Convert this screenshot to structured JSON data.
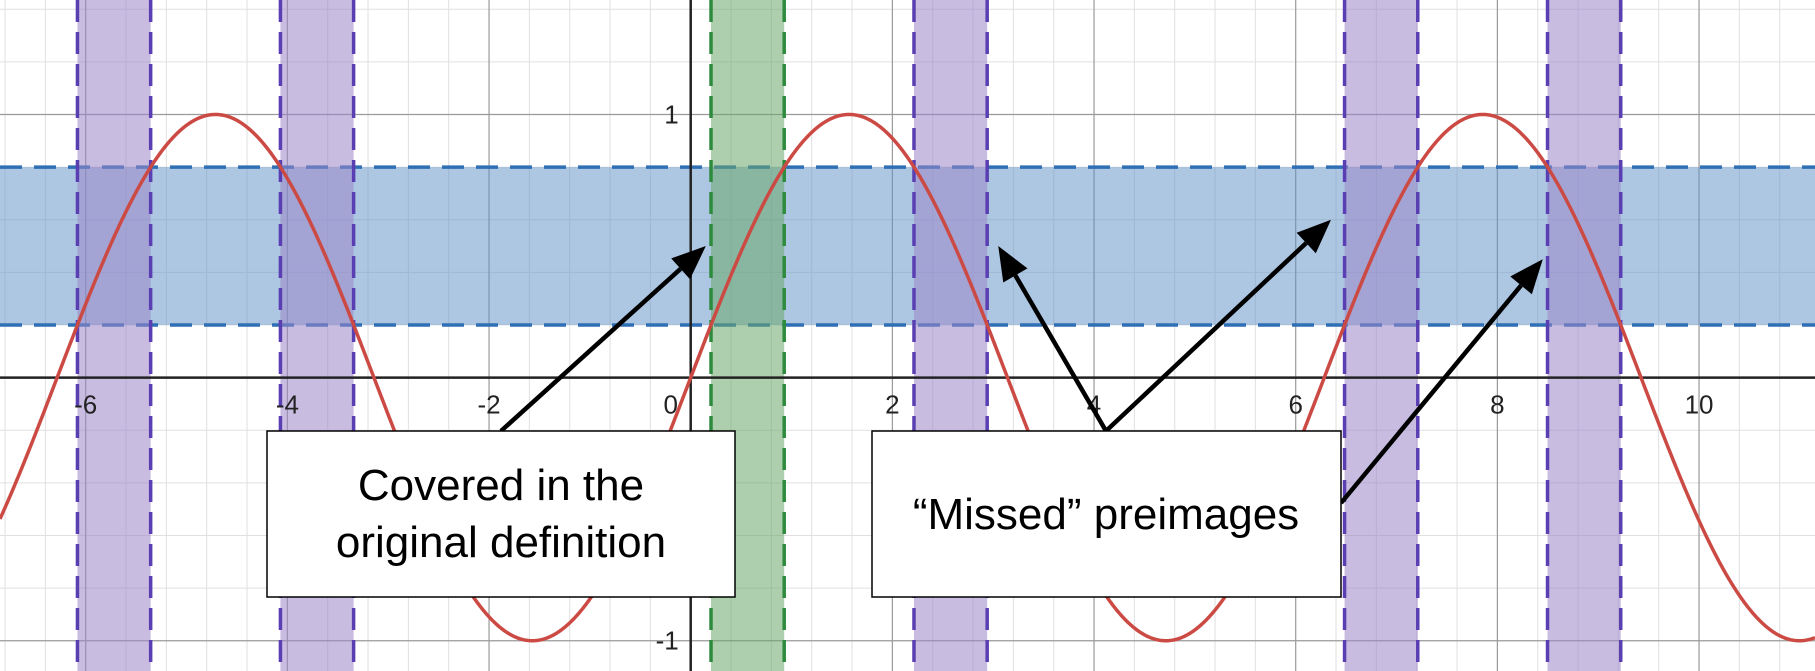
{
  "chart_data": {
    "type": "line",
    "function": "sin(x)",
    "xlim": [
      -6.85,
      11.15
    ],
    "ylim": [
      -1.115,
      1.435
    ],
    "grid": true,
    "x_ticks": [
      {
        "value": -6,
        "label": "-6"
      },
      {
        "value": -4,
        "label": "-4"
      },
      {
        "value": -2,
        "label": "-2"
      },
      {
        "value": 0,
        "label": "0"
      },
      {
        "value": 2,
        "label": "2"
      },
      {
        "value": 4,
        "label": "4"
      },
      {
        "value": 6,
        "label": "6"
      },
      {
        "value": 8,
        "label": "8"
      },
      {
        "value": 10,
        "label": "10"
      }
    ],
    "y_ticks": [
      {
        "value": 1,
        "label": "1"
      },
      {
        "value": -1,
        "label": "-1"
      }
    ],
    "horizontal_band": {
      "y_min": 0.2,
      "y_max": 0.8,
      "color": "#5b8fc7"
    },
    "green_band": {
      "x_min": 0.2014,
      "x_max": 0.9273,
      "color": "#6aa86a"
    },
    "purple_bands": [
      {
        "x_min": -6.0818,
        "x_max": -5.3559
      },
      {
        "x_min": -4.0689,
        "x_max": -3.343
      },
      {
        "x_min": 2.2143,
        "x_max": 2.9402
      },
      {
        "x_min": 6.4845,
        "x_max": 7.2105
      },
      {
        "x_min": 8.4975,
        "x_max": 9.2234
      }
    ],
    "colors": {
      "curve": "#cc4a44",
      "band_edge": "#2f6fb5",
      "green_edge": "#2e8b3e",
      "purple_fill": "#9b85c9",
      "purple_edge": "#5a3fb3",
      "arrow": "#000000"
    },
    "annotations": [
      {
        "lines": [
          "Covered in the",
          "original definition"
        ],
        "arrows_to": [
          {
            "x": 0.15,
            "y": 0.5
          }
        ]
      },
      {
        "lines": [
          "“Missed” preimages"
        ],
        "arrows_to": [
          {
            "x": 3.05,
            "y": 0.5
          },
          {
            "x": 6.35,
            "y": 0.6
          },
          {
            "x": 8.45,
            "y": 0.45
          }
        ]
      }
    ]
  }
}
